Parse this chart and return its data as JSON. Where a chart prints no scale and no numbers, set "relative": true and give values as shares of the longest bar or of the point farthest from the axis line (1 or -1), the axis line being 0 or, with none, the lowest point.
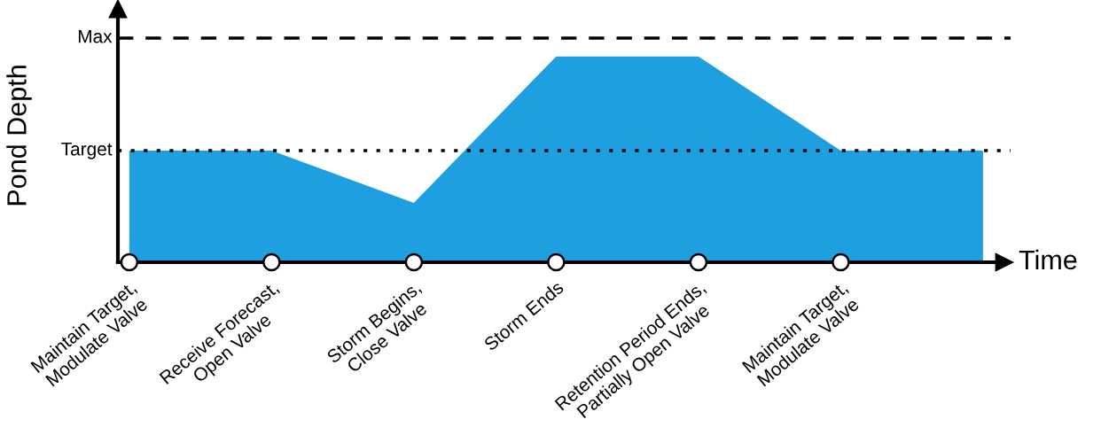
{
  "chart_data": {
    "type": "area",
    "relative": true,
    "xlabel": "Time",
    "ylabel": "Pond Depth",
    "categories": [
      "Maintain Target,\nModulate Valve",
      "Receive Forecast,\nOpen Valve",
      "Storm Begins,\nClose Valve",
      "Storm Ends",
      "Retention Period Ends,\nPartially Open Valve",
      "Maintain Target,\nModulate Valve",
      null
    ],
    "series": [
      {
        "color": "#1ea0e0",
        "values": [
          0.543,
          0.543,
          0.289,
          1,
          1,
          0.543,
          0.543
        ]
      }
    ],
    "ref_lines": [
      {
        "axis": "y",
        "value": 0.543,
        "label": "Target",
        "line_style": "dotted",
        "color": "#000000"
      },
      {
        "axis": "y",
        "value": 1.09,
        "label": "Max",
        "line_style": "dashed",
        "color": "#000000"
      }
    ]
  }
}
